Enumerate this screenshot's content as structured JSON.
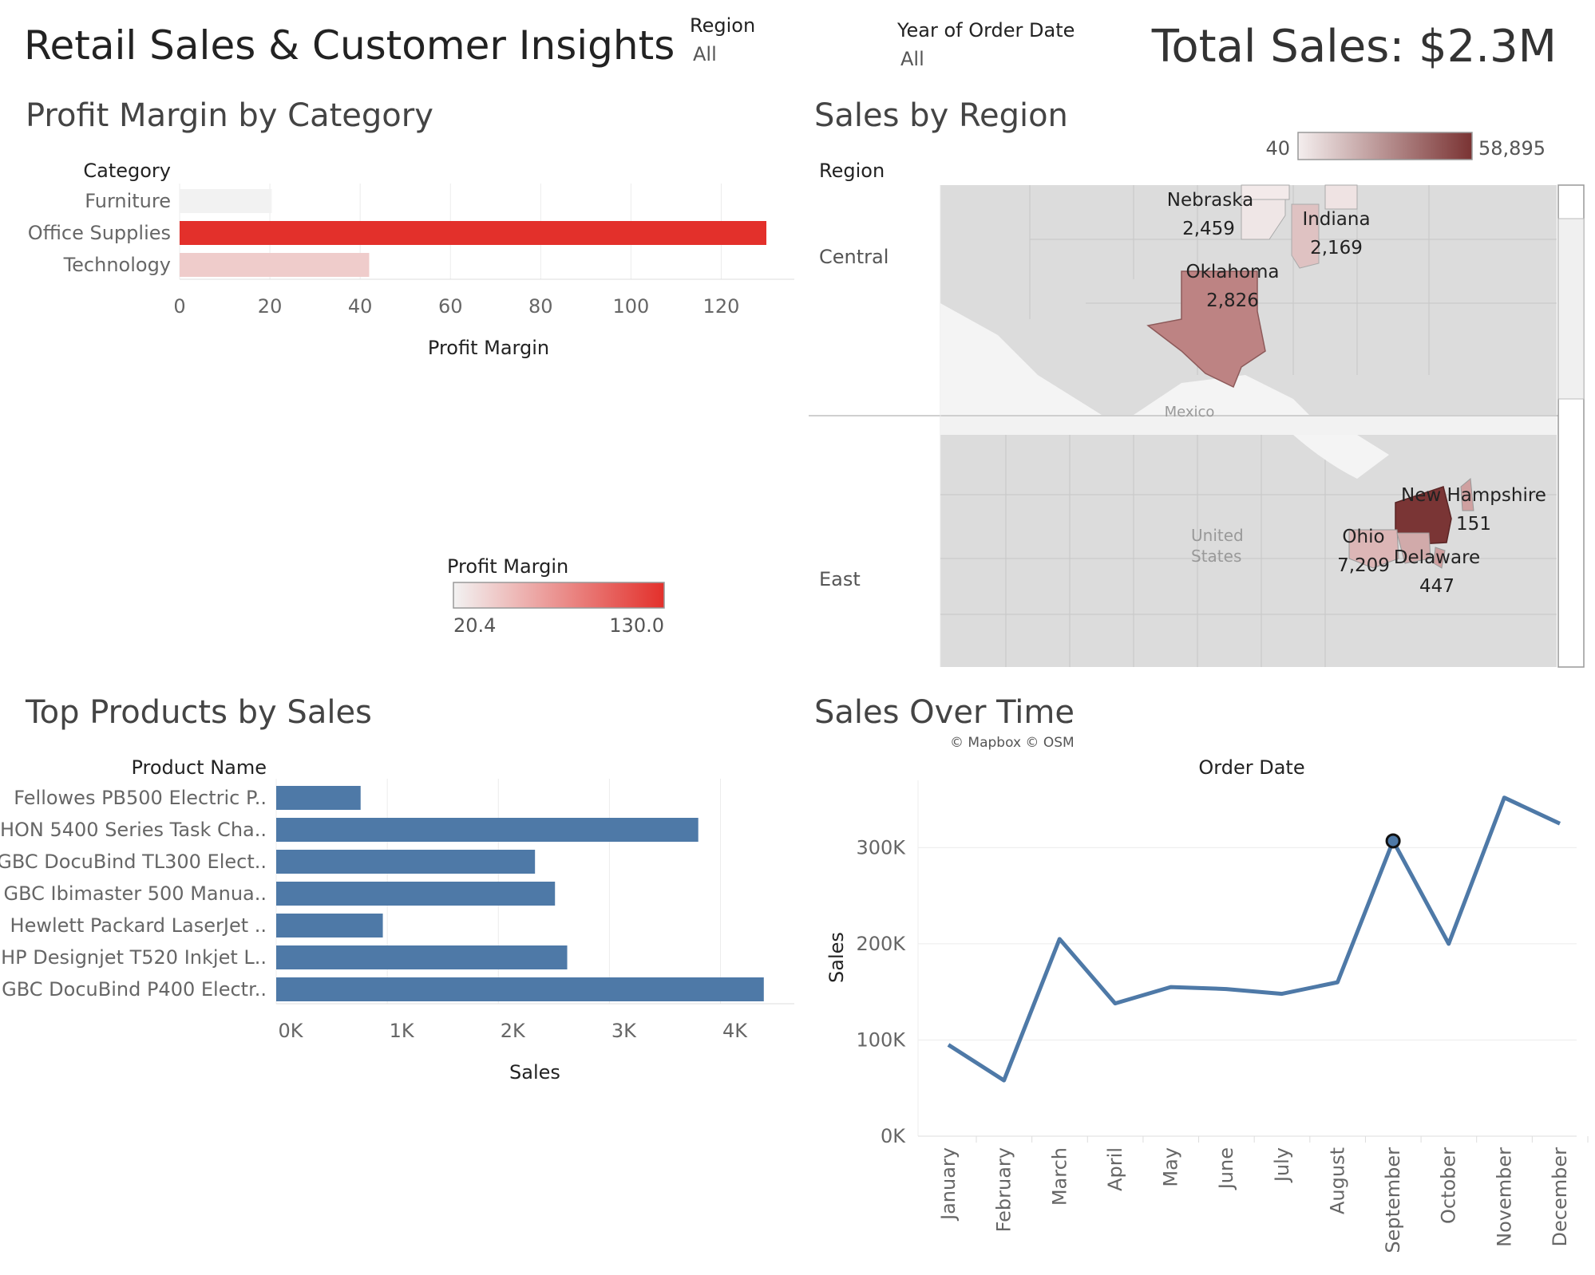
{
  "header": {
    "title": "Retail Sales & Customer Insights",
    "total": "Total Sales: $2.3M",
    "filters": [
      {
        "label": "Region",
        "value": "All"
      },
      {
        "label": "Year of Order Date",
        "value": "All"
      }
    ]
  },
  "sections": {
    "profit": "Profit Margin by Category",
    "region": "Sales by Region",
    "products": "Top Products by Sales",
    "time": "Sales Over Time"
  },
  "chart_data": [
    {
      "type": "bar",
      "orientation": "horizontal",
      "row_header": "Category",
      "categories": [
        "Furniture",
        "Office Supplies",
        "Technology"
      ],
      "values": [
        20.4,
        130.0,
        42.0
      ],
      "xlabel": "Profit Margin",
      "xlim": [
        0,
        130
      ],
      "xticks": [
        "0",
        "20",
        "40",
        "60",
        "80",
        "100",
        "120"
      ],
      "color_legend": {
        "title": "Profit Margin",
        "min": "20.4",
        "max": "130.0",
        "min_color": "#f2f2f2",
        "max_color": "#e3302b"
      }
    },
    {
      "type": "map",
      "row_header": "Region",
      "color_legend": {
        "min": "40",
        "max": "58,895",
        "min_color": "#f4eeee",
        "max_color": "#7a3333"
      },
      "panels": [
        {
          "region": "Central",
          "states": [
            {
              "name": "Nebraska",
              "value": "2,459"
            },
            {
              "name": "Indiana",
              "value": "2,169"
            },
            {
              "name": "Oklahoma",
              "value": "2,826"
            }
          ],
          "basemap_label": "Mexico"
        },
        {
          "region": "East",
          "states": [
            {
              "name": "New Hampshire",
              "value": "151"
            },
            {
              "name": "Ohio",
              "value": "7,209"
            },
            {
              "name": "Delaware",
              "value": "447"
            }
          ],
          "basemap_label": "United States"
        }
      ],
      "attribution": "© Mapbox © OSM"
    },
    {
      "type": "bar",
      "orientation": "horizontal",
      "row_header": "Product Name",
      "categories": [
        "Fellowes PB500 Electric P..",
        "HON 5400 Series Task Cha..",
        "GBC DocuBind TL300 Elect..",
        "GBC Ibimaster 500 Manua..",
        "Hewlett Packard LaserJet ..",
        "HP Designjet T520 Inkjet L..",
        "GBC DocuBind P400 Electr.."
      ],
      "values": [
        760,
        3800,
        2330,
        2510,
        960,
        2620,
        4390
      ],
      "xlabel": "Sales",
      "xlim": [
        0,
        4600
      ],
      "xticks": [
        "0K",
        "1K",
        "2K",
        "3K",
        "4K"
      ],
      "color": "#4e79a7"
    },
    {
      "type": "line",
      "title": "Order Date",
      "x": [
        "January",
        "February",
        "March",
        "April",
        "May",
        "June",
        "July",
        "August",
        "September",
        "October",
        "November",
        "December"
      ],
      "values": [
        95000,
        58000,
        205000,
        138000,
        155000,
        153000,
        148000,
        160000,
        307000,
        200000,
        352000,
        325000
      ],
      "ylabel": "Sales",
      "ylim": [
        0,
        370000
      ],
      "yticks": [
        "0K",
        "100K",
        "200K",
        "300K"
      ],
      "color": "#4e79a7",
      "highlight_index": 8
    }
  ]
}
